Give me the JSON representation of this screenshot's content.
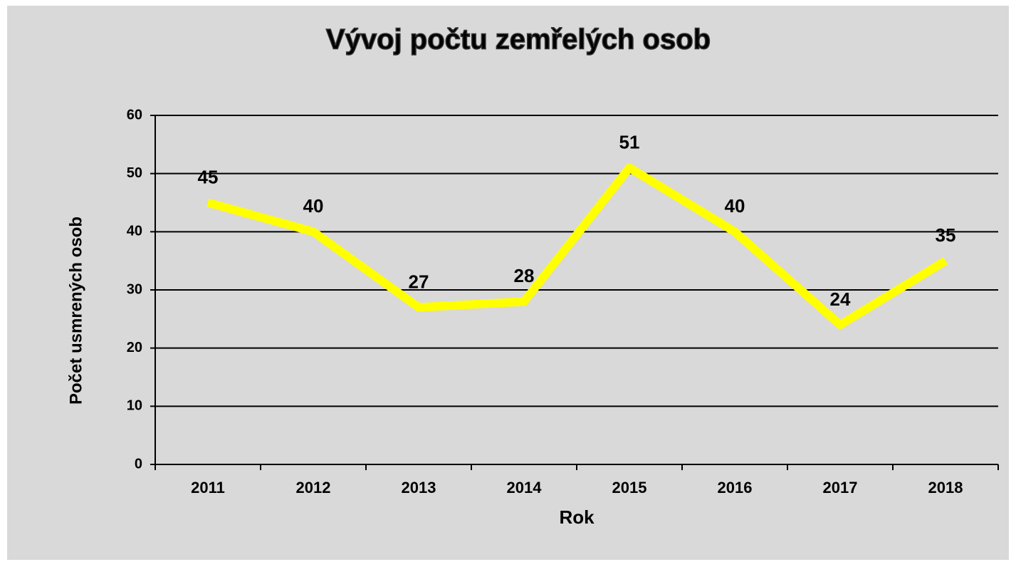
{
  "chart_data": {
    "type": "line",
    "title": "Vývoj počtu zemřelých osob",
    "x_label": "Rok",
    "y_label": "Počet usmrených osob",
    "categories": [
      "2011",
      "2012",
      "2013",
      "2014",
      "2015",
      "2016",
      "2017",
      "2018"
    ],
    "values": [
      45,
      40,
      27,
      28,
      51,
      40,
      24,
      35
    ],
    "color": "#ffff00",
    "ylim": [
      0,
      60
    ],
    "yticks": [
      0,
      10,
      20,
      30,
      40,
      50,
      60
    ],
    "grid": true
  }
}
